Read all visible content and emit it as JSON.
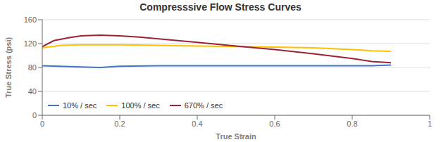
{
  "chart_data": {
    "type": "line",
    "title": "Compresssive Flow Stress Curves",
    "x_label": "True Strain",
    "y_label": "True Stress (psi)",
    "xlim": [
      0,
      1.0
    ],
    "ylim": [
      0,
      160
    ],
    "xticks": [
      0,
      0.2,
      0.4,
      0.6,
      0.8,
      1
    ],
    "yticks": [
      0,
      40,
      80,
      120,
      160
    ],
    "grid": true,
    "legend": "lower left",
    "series": [
      {
        "name": "10% / sec",
        "color": "#4472C4",
        "x": [
          0.0,
          0.1,
          0.15,
          0.2,
          0.3,
          0.4,
          0.5,
          0.6,
          0.7,
          0.8,
          0.85,
          0.9
        ],
        "values": [
          83,
          81,
          80,
          82,
          83,
          83,
          83,
          83,
          83,
          83,
          83,
          84
        ]
      },
      {
        "name": "100% / sec",
        "color": "#FFC000",
        "x": [
          0.0,
          0.05,
          0.1,
          0.15,
          0.2,
          0.3,
          0.4,
          0.5,
          0.6,
          0.7,
          0.8,
          0.85,
          0.9
        ],
        "values": [
          113,
          117,
          118,
          118,
          118,
          117,
          116,
          115,
          114,
          113,
          110,
          108,
          107
        ]
      },
      {
        "name": "670% / sec",
        "color": "#9B2335",
        "x": [
          0.0,
          0.03,
          0.07,
          0.1,
          0.15,
          0.2,
          0.25,
          0.3,
          0.4,
          0.5,
          0.6,
          0.7,
          0.8,
          0.85,
          0.9
        ],
        "values": [
          115,
          125,
          130,
          133,
          134,
          133,
          131,
          128,
          122,
          116,
          110,
          103,
          95,
          90,
          88
        ]
      }
    ]
  }
}
